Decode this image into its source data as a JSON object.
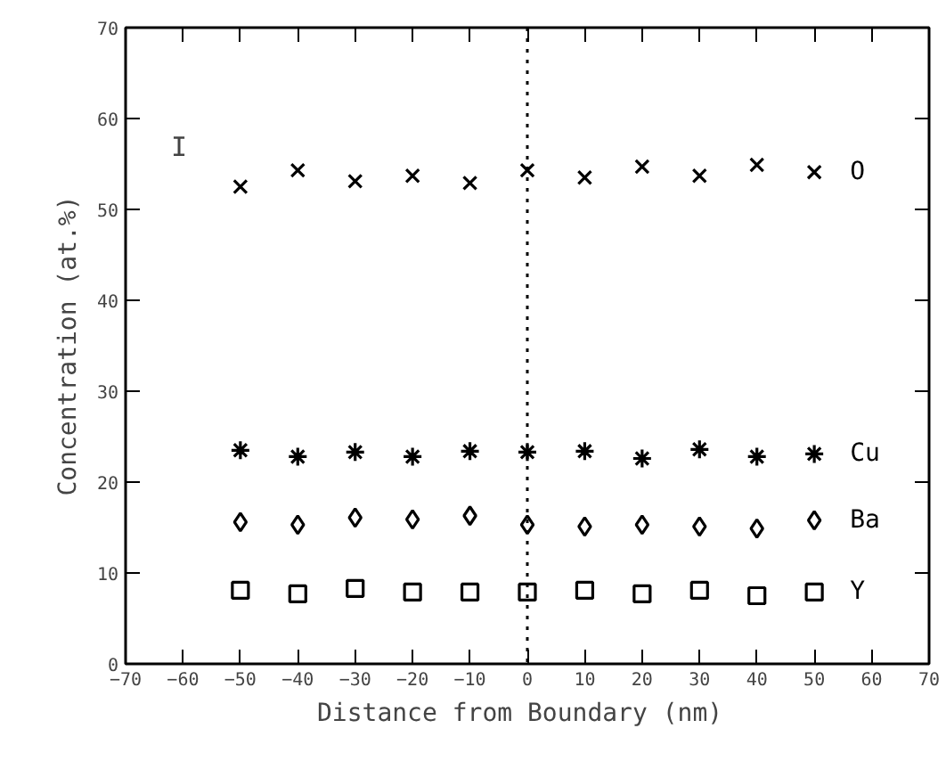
{
  "chart_data": {
    "type": "scatter",
    "xlabel": "Distance from Boundary  (nm)",
    "ylabel": "Concentration (at.%)",
    "x": [
      -50,
      -40,
      -30,
      -20,
      -10,
      0,
      10,
      20,
      30,
      40,
      50
    ],
    "series": [
      {
        "name": "O",
        "color": "#000000",
        "marker": "x",
        "values": [
          52.5,
          54.3,
          53.1,
          53.7,
          52.9,
          54.3,
          53.5,
          54.7,
          53.7,
          54.9,
          54.1
        ]
      },
      {
        "name": "Cu",
        "color": "#000000",
        "marker": "cross",
        "values": [
          23.5,
          22.8,
          23.3,
          22.8,
          23.4,
          23.3,
          23.4,
          22.6,
          23.6,
          22.8,
          23.1
        ]
      },
      {
        "name": "Ba",
        "color": "#000000",
        "marker": "diamond",
        "values": [
          15.6,
          15.3,
          16.1,
          15.9,
          16.3,
          15.3,
          15.1,
          15.3,
          15.1,
          14.9,
          15.8
        ]
      },
      {
        "name": "Y",
        "color": "#000000",
        "marker": "square",
        "values": [
          8.1,
          7.7,
          8.3,
          7.9,
          7.9,
          7.9,
          8.1,
          7.7,
          8.1,
          7.5,
          7.9
        ]
      }
    ],
    "annotations": [
      "I"
    ],
    "ref_lines": [
      {
        "axis": "x",
        "value": 0,
        "label": null,
        "line_style": "dotted",
        "color": "#000000"
      }
    ],
    "xlim": [
      -70,
      70
    ],
    "ylim": [
      0,
      70
    ],
    "xticks": [
      -70,
      -60,
      -50,
      -40,
      -30,
      -20,
      -10,
      0,
      10,
      20,
      30,
      40,
      50,
      60,
      70
    ],
    "yticks": [
      0,
      10,
      20,
      30,
      40,
      50,
      60,
      70
    ],
    "grid": false
  }
}
